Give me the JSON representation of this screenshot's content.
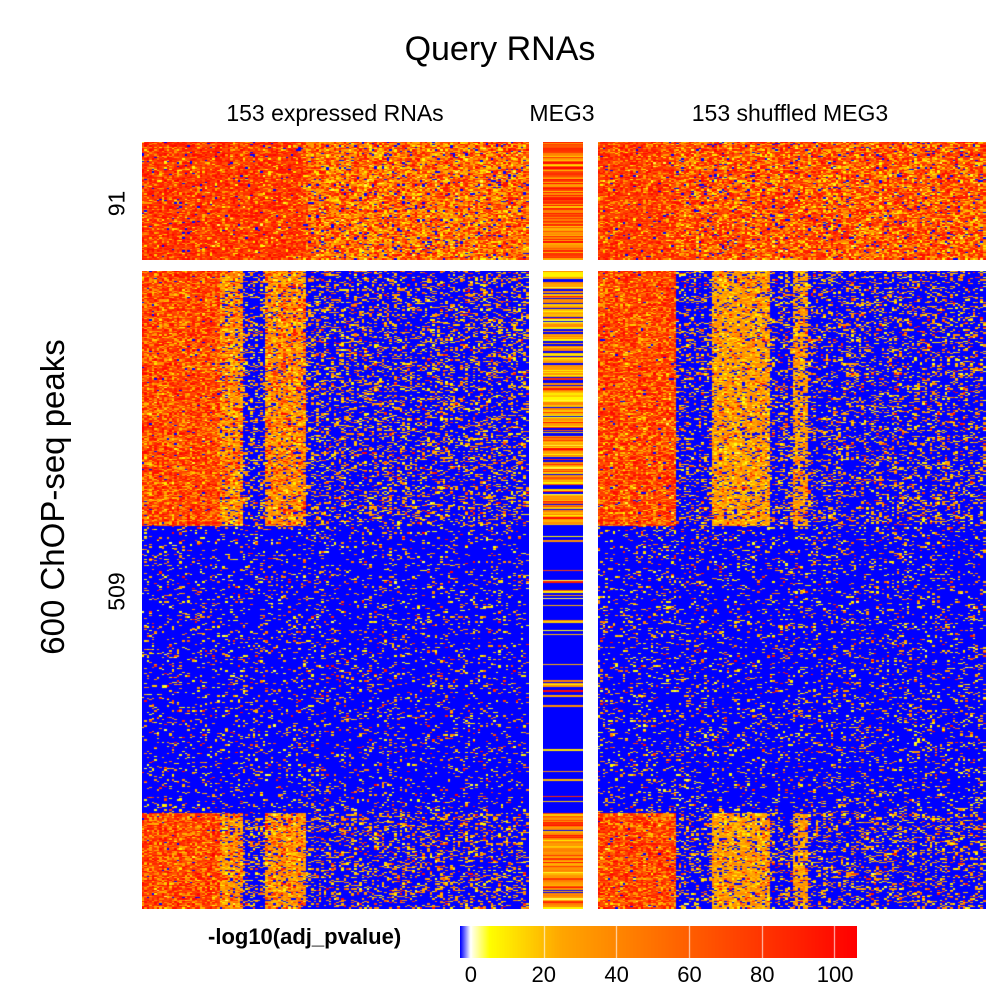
{
  "chart_data": {
    "type": "heatmap",
    "title": "Query RNAs",
    "ylabel": "600 ChOP-seq peaks",
    "column_groups": [
      {
        "label": "153 expressed RNAs",
        "n_columns": 153
      },
      {
        "label": "MEG3",
        "n_columns": 1
      },
      {
        "label": "153 shuffled MEG3",
        "n_columns": 153
      }
    ],
    "row_groups": [
      {
        "label": "91",
        "n_rows": 91
      },
      {
        "label": "509",
        "n_rows": 509
      }
    ],
    "colorbar": {
      "title": "-log10(adj_pvalue)",
      "range": [
        -3,
        106
      ],
      "ticks": [
        0,
        20,
        40,
        60,
        80,
        100
      ],
      "tick_labels": [
        "0",
        "20",
        "40",
        "60",
        "80",
        "100"
      ],
      "colors": [
        "#0000ff",
        "#ffffff",
        "#ffff00",
        "#ffa500",
        "#ff0000"
      ]
    }
  }
}
